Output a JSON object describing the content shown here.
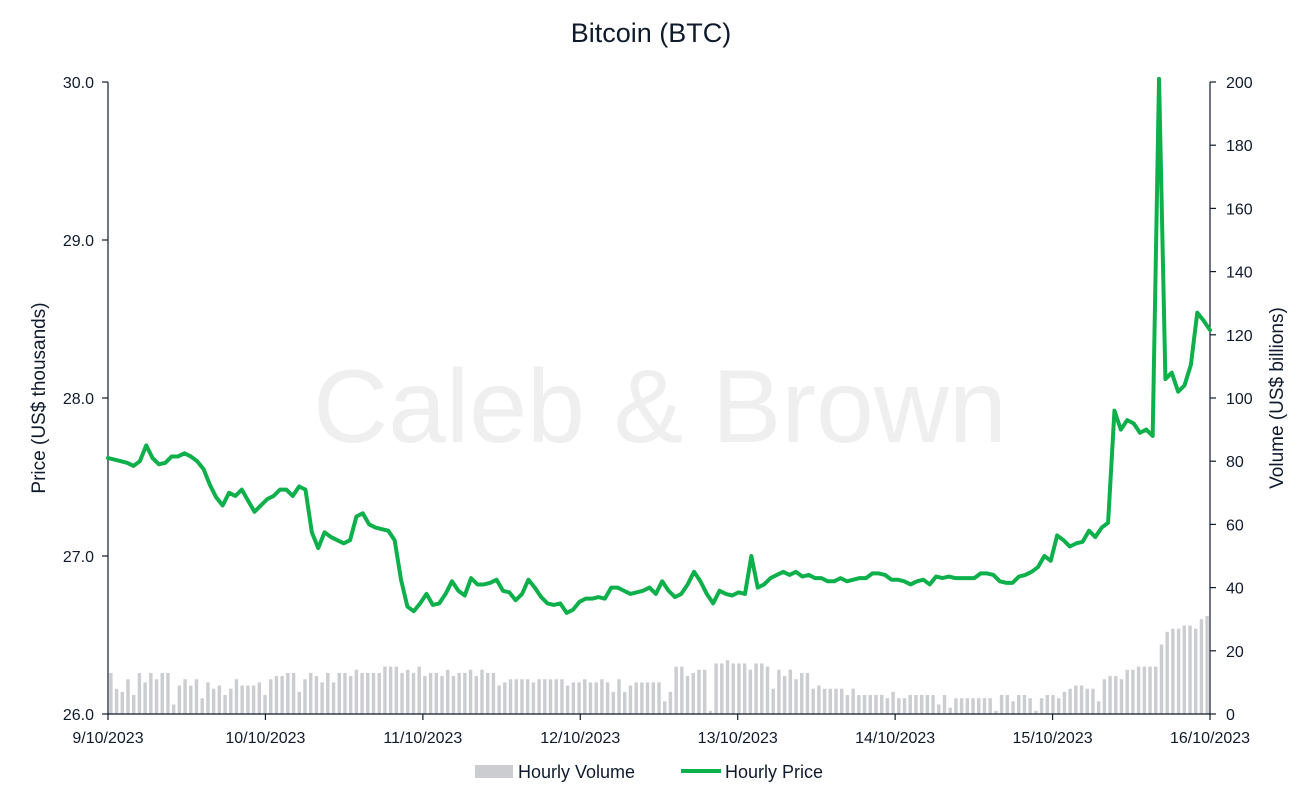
{
  "chart_data": {
    "type": "line",
    "title": "Bitcoin (BTC)",
    "watermark": "Caleb & Brown",
    "y_left": {
      "label": "Price (US$ thousands)",
      "ylim": [
        26.0,
        30.0
      ],
      "ticks": [
        "26.0",
        "27.0",
        "28.0",
        "29.0",
        "30.0"
      ]
    },
    "y_right": {
      "label": "Volume (US$ billions)",
      "ylim": [
        0,
        200
      ],
      "ticks": [
        "0",
        "20",
        "40",
        "60",
        "80",
        "100",
        "120",
        "140",
        "160",
        "180",
        "200"
      ]
    },
    "x_ticks": [
      "9/10/2023",
      "10/10/2023",
      "11/10/2023",
      "12/10/2023",
      "13/10/2023",
      "14/10/2023",
      "15/10/2023",
      "16/10/2023"
    ],
    "x_range_days": [
      0,
      7
    ],
    "grid": false,
    "legend_position": "bottom",
    "series": [
      {
        "name": "Hourly Volume",
        "type": "bar",
        "axis": "right",
        "color": "#cccdd1",
        "values": [
          13,
          8,
          7,
          11,
          6,
          13,
          10,
          13,
          11,
          13,
          13,
          3,
          9,
          11,
          9,
          11,
          5,
          10,
          8,
          9,
          6,
          8,
          11,
          9,
          9,
          9,
          10,
          6,
          11,
          12,
          12,
          13,
          13,
          7,
          11,
          13,
          12,
          10,
          13,
          10,
          13,
          13,
          12,
          14,
          13,
          13,
          13,
          13,
          15,
          15,
          15,
          13,
          14,
          13,
          15,
          12,
          13,
          13,
          12,
          14,
          12,
          13,
          13,
          14,
          12,
          14,
          13,
          13,
          9,
          10,
          11,
          11,
          11,
          11,
          10,
          11,
          11,
          11,
          11,
          11,
          9,
          10,
          10,
          11,
          10,
          10,
          11,
          10,
          7,
          11,
          7,
          9,
          10,
          10,
          10,
          10,
          10,
          4,
          7,
          15,
          15,
          12,
          13,
          14,
          14,
          1,
          16,
          16,
          17,
          16,
          16,
          16,
          14,
          16,
          16,
          15,
          8,
          14,
          12,
          14,
          11,
          13,
          13,
          8,
          9,
          8,
          8,
          8,
          8,
          6,
          8,
          6,
          6,
          6,
          6,
          6,
          5,
          7,
          5,
          5,
          6,
          6,
          6,
          6,
          6,
          3,
          6,
          2,
          5,
          5,
          5,
          5,
          5,
          5,
          5,
          1,
          6,
          6,
          4,
          6,
          6,
          5,
          1,
          5,
          6,
          6,
          5,
          7,
          8,
          9,
          9,
          8,
          8,
          4,
          11,
          12,
          12,
          11,
          14,
          14,
          15,
          15,
          15,
          15,
          22,
          26,
          27,
          27,
          28,
          28,
          27,
          30,
          31
        ]
      },
      {
        "name": "Hourly Price",
        "type": "line",
        "axis": "left",
        "color": "#0db04b",
        "values": [
          27.62,
          27.61,
          27.6,
          27.59,
          27.57,
          27.6,
          27.7,
          27.62,
          27.58,
          27.59,
          27.63,
          27.63,
          27.65,
          27.63,
          27.6,
          27.55,
          27.45,
          27.37,
          27.32,
          27.4,
          27.38,
          27.42,
          27.35,
          27.28,
          27.32,
          27.36,
          27.38,
          27.42,
          27.42,
          27.38,
          27.44,
          27.42,
          27.15,
          27.05,
          27.15,
          27.12,
          27.1,
          27.08,
          27.1,
          27.25,
          27.27,
          27.2,
          27.18,
          27.17,
          27.16,
          27.1,
          26.85,
          26.68,
          26.65,
          26.7,
          26.76,
          26.69,
          26.7,
          26.76,
          26.84,
          26.78,
          26.75,
          26.86,
          26.82,
          26.82,
          26.83,
          26.85,
          26.78,
          26.77,
          26.72,
          26.76,
          26.85,
          26.8,
          26.74,
          26.7,
          26.69,
          26.7,
          26.64,
          26.66,
          26.71,
          26.73,
          26.73,
          26.74,
          26.73,
          26.8,
          26.8,
          26.78,
          26.76,
          26.77,
          26.78,
          26.8,
          26.76,
          26.84,
          26.78,
          26.74,
          26.76,
          26.82,
          26.9,
          26.84,
          26.76,
          26.7,
          26.78,
          26.76,
          26.75,
          26.77,
          26.76,
          27.0,
          26.8,
          26.82,
          26.86,
          26.88,
          26.9,
          26.88,
          26.9,
          26.87,
          26.88,
          26.86,
          26.86,
          26.84,
          26.84,
          26.86,
          26.84,
          26.85,
          26.86,
          26.86,
          26.89,
          26.89,
          26.88,
          26.85,
          26.85,
          26.84,
          26.82,
          26.84,
          26.85,
          26.82,
          26.87,
          26.86,
          26.87,
          26.86,
          26.86,
          26.86,
          26.86,
          26.89,
          26.89,
          26.88,
          26.84,
          26.83,
          26.83,
          26.87,
          26.88,
          26.9,
          26.93,
          27.0,
          26.97,
          27.13,
          27.1,
          27.06,
          27.08,
          27.09,
          27.16,
          27.12,
          27.18,
          27.21,
          27.92,
          27.8,
          27.86,
          27.84,
          27.78,
          27.8,
          27.76,
          30.02,
          28.12,
          28.16,
          28.04,
          28.08,
          28.21,
          28.54,
          28.49,
          28.43
        ]
      }
    ]
  }
}
